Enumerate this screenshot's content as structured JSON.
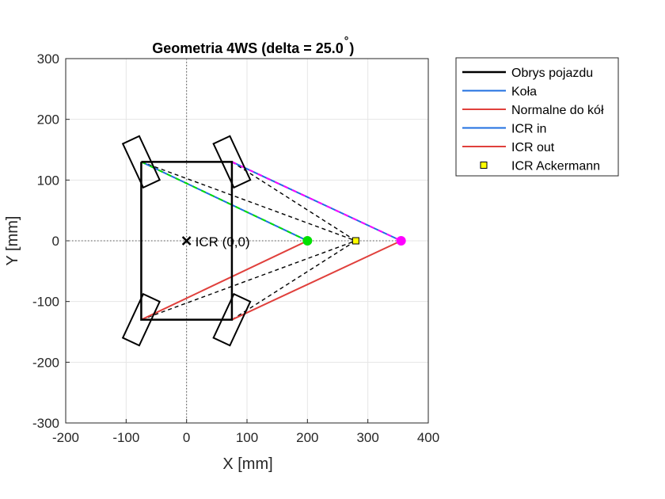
{
  "chart_data": {
    "type": "line",
    "title": "Geometria 4WS (delta = 25.0",
    "title_degree": "°",
    "title_suffix": ")",
    "xlabel": "X [mm]",
    "ylabel": "Y [mm]",
    "xlim": [
      -200,
      400
    ],
    "ylim": [
      -300,
      300
    ],
    "xticks": [
      -200,
      -100,
      0,
      100,
      200,
      300,
      400
    ],
    "yticks": [
      -300,
      -200,
      -100,
      0,
      100,
      200,
      300
    ],
    "grid": true,
    "legend_position": "outside top-right",
    "colors": {
      "body": "#000000",
      "wheels": "#1f6fe0",
      "normals": "#e0403c",
      "icr_in": "#1f6fe0",
      "icr_out": "#e0403c",
      "icr_in_marker": "#00e000",
      "icr_out_marker": "#ff00ff",
      "ackermann_marker": "#ffff00",
      "grid": "#e6e6e6"
    },
    "vehicle_outline": [
      [
        -75,
        130
      ],
      [
        75,
        130
      ],
      [
        75,
        -130
      ],
      [
        -75,
        -130
      ],
      [
        -75,
        130
      ]
    ],
    "wheels": [
      {
        "name": "front-left",
        "cx": -75,
        "cy": 130,
        "angle_deg": 115,
        "length": 80,
        "width": 30
      },
      {
        "name": "front-right",
        "cx": 75,
        "cy": 130,
        "angle_deg": 115,
        "length": 80,
        "width": 30
      },
      {
        "name": "rear-left",
        "cx": -75,
        "cy": -130,
        "angle_deg": 65,
        "length": 80,
        "width": 30
      },
      {
        "name": "rear-right",
        "cx": 75,
        "cy": -130,
        "angle_deg": 65,
        "length": 80,
        "width": 30
      }
    ],
    "icr_in_point": [
      200,
      0
    ],
    "icr_out_point": [
      355,
      0
    ],
    "icr_ackermann_point": [
      280,
      0
    ],
    "icr_origin_label": "ICR (0,0)",
    "normals_to_icr_in": [
      [
        -75,
        130
      ],
      [
        -75,
        -130
      ]
    ],
    "normals_to_icr_out": [
      [
        75,
        130
      ],
      [
        75,
        -130
      ]
    ],
    "dashed_to_ackermann": [
      [
        -75,
        130
      ],
      [
        75,
        130
      ],
      [
        -75,
        -130
      ],
      [
        75,
        -130
      ]
    ],
    "legend": [
      {
        "label": "Obrys pojazdu",
        "style": "line",
        "color": "#000000",
        "width": 2.5
      },
      {
        "label": "Koła",
        "style": "line",
        "color": "#1f6fe0",
        "width": 2
      },
      {
        "label": "Normalne do kół",
        "style": "line",
        "color": "#e0403c",
        "width": 2
      },
      {
        "label": "ICR in",
        "style": "line",
        "color": "#1f6fe0",
        "width": 2
      },
      {
        "label": "ICR out",
        "style": "line",
        "color": "#e0403c",
        "width": 2
      },
      {
        "label": "ICR Ackermann",
        "style": "marker",
        "color": "#ffff00",
        "width": 1
      }
    ]
  }
}
